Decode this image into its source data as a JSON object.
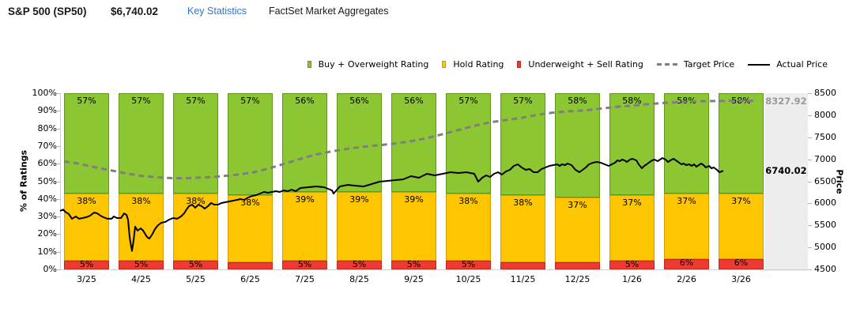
{
  "header": {
    "title": "S&P 500 (SP50)",
    "price": "$6,740.02",
    "key_statistics_label": "Key Statistics",
    "source_label": "FactSet Market Aggregates",
    "link_color": "#2878ce"
  },
  "legend": {
    "items": [
      {
        "label": "Buy + Overweight Rating",
        "swatch": "bar",
        "color": "#8cc632",
        "border": "#5f9718"
      },
      {
        "label": "Hold Rating",
        "swatch": "bar",
        "color": "#fdc600",
        "border": "#d89e00"
      },
      {
        "label": "Underweight + Sell Rating",
        "swatch": "bar",
        "color": "#ee3a30",
        "border": "#be2a1f"
      },
      {
        "label": "Target Price",
        "swatch": "dash",
        "color": "#7f7f7f"
      },
      {
        "label": "Actual Price",
        "swatch": "line",
        "color": "#000000"
      }
    ]
  },
  "chart_data": {
    "type": "combo-stacked-bar-and-lines",
    "categories": [
      "3/25",
      "4/25",
      "5/25",
      "6/25",
      "7/25",
      "8/25",
      "9/25",
      "10/25",
      "11/25",
      "12/25",
      "1/26",
      "2/26",
      "3/26"
    ],
    "bar_series": [
      {
        "name": "Buy + Overweight Rating",
        "fill": "#8cc632",
        "border": "#5f9718",
        "values": [
          57,
          57,
          57,
          57,
          56,
          56,
          56,
          57,
          57,
          58,
          58,
          58,
          58
        ],
        "labels": [
          "57%",
          "57%",
          "57%",
          "57%",
          "56%",
          "56%",
          "56%",
          "57%",
          "57%",
          "58%",
          "58%",
          "58%",
          "58%"
        ]
      },
      {
        "name": "Hold Rating",
        "fill": "#fdc600",
        "border": "#d89e00",
        "values": [
          38,
          38,
          38,
          38,
          39,
          39,
          39,
          38,
          38,
          37,
          37,
          37,
          37
        ],
        "labels": [
          "38%",
          "38%",
          "38%",
          "38%",
          "39%",
          "39%",
          "39%",
          "38%",
          "38%",
          "37%",
          "37%",
          "37%",
          "37%"
        ]
      },
      {
        "name": "Underweight + Sell Rating",
        "fill": "#ee3a30",
        "border": "#be2a1f",
        "values": [
          5,
          5,
          5,
          4,
          5,
          5,
          5,
          5,
          4,
          4,
          5,
          6,
          6
        ],
        "labels": [
          "5%",
          "5%",
          "5%",
          "",
          "5%",
          "5%",
          "5%",
          "5%",
          "",
          "",
          "5%",
          "6%",
          "6%"
        ]
      }
    ],
    "line_series": [
      {
        "name": "Target Price",
        "style": "dashed",
        "color": "#7f7f7f",
        "points": [
          [
            81,
            6950
          ],
          [
            100,
            6900
          ],
          [
            120,
            6820
          ],
          [
            140,
            6750
          ],
          [
            160,
            6680
          ],
          [
            180,
            6620
          ],
          [
            200,
            6590
          ],
          [
            220,
            6570
          ],
          [
            240,
            6575
          ],
          [
            260,
            6590
          ],
          [
            280,
            6615
          ],
          [
            300,
            6650
          ],
          [
            320,
            6700
          ],
          [
            340,
            6790
          ],
          [
            360,
            6900
          ],
          [
            380,
            7010
          ],
          [
            400,
            7110
          ],
          [
            420,
            7180
          ],
          [
            440,
            7240
          ],
          [
            460,
            7285
          ],
          [
            480,
            7320
          ],
          [
            500,
            7360
          ],
          [
            520,
            7410
          ],
          [
            540,
            7480
          ],
          [
            560,
            7570
          ],
          [
            580,
            7665
          ],
          [
            600,
            7760
          ],
          [
            620,
            7840
          ],
          [
            640,
            7890
          ],
          [
            660,
            7940
          ],
          [
            680,
            8010
          ],
          [
            700,
            8060
          ],
          [
            720,
            8090
          ],
          [
            740,
            8110
          ],
          [
            760,
            8150
          ],
          [
            780,
            8190
          ],
          [
            800,
            8220
          ],
          [
            820,
            8250
          ],
          [
            840,
            8280
          ],
          [
            860,
            8300
          ],
          [
            880,
            8315
          ],
          [
            900,
            8322
          ],
          [
            930,
            8326
          ],
          [
            958,
            8327.92
          ]
        ]
      },
      {
        "name": "Actual Price",
        "style": "solid",
        "color": "#000000",
        "points": [
          [
            76,
            5827
          ],
          [
            80,
            5858
          ],
          [
            83,
            5800
          ],
          [
            87,
            5757
          ],
          [
            91,
            5650
          ],
          [
            96,
            5702
          ],
          [
            100,
            5650
          ],
          [
            105,
            5668
          ],
          [
            110,
            5690
          ],
          [
            114,
            5720
          ],
          [
            119,
            5790
          ],
          [
            123,
            5773
          ],
          [
            127,
            5720
          ],
          [
            131,
            5684
          ],
          [
            136,
            5650
          ],
          [
            141,
            5650
          ],
          [
            144,
            5702
          ],
          [
            148,
            5666
          ],
          [
            153,
            5666
          ],
          [
            157,
            5770
          ],
          [
            160,
            5738
          ],
          [
            162,
            5630
          ],
          [
            164,
            5235
          ],
          [
            166,
            5010
          ],
          [
            167,
            4920
          ],
          [
            169,
            5160
          ],
          [
            171,
            5470
          ],
          [
            174,
            5380
          ],
          [
            178,
            5432
          ],
          [
            181,
            5380
          ],
          [
            186,
            5235
          ],
          [
            189,
            5200
          ],
          [
            193,
            5307
          ],
          [
            196,
            5415
          ],
          [
            200,
            5504
          ],
          [
            204,
            5558
          ],
          [
            209,
            5576
          ],
          [
            214,
            5630
          ],
          [
            219,
            5666
          ],
          [
            224,
            5650
          ],
          [
            229,
            5702
          ],
          [
            233,
            5773
          ],
          [
            236,
            5862
          ],
          [
            239,
            5935
          ],
          [
            243,
            5971
          ],
          [
            247,
            5900
          ],
          [
            251,
            5971
          ],
          [
            255,
            5935
          ],
          [
            259,
            5880
          ],
          [
            263,
            5935
          ],
          [
            267,
            6007
          ],
          [
            271,
            5971
          ],
          [
            276,
            5971
          ],
          [
            280,
            6007
          ],
          [
            285,
            6025
          ],
          [
            290,
            6043
          ],
          [
            295,
            6061
          ],
          [
            300,
            6079
          ],
          [
            304,
            6096
          ],
          [
            309,
            6079
          ],
          [
            314,
            6132
          ],
          [
            319,
            6168
          ],
          [
            324,
            6186
          ],
          [
            329,
            6222
          ],
          [
            334,
            6258
          ],
          [
            339,
            6240
          ],
          [
            344,
            6258
          ],
          [
            349,
            6276
          ],
          [
            354,
            6258
          ],
          [
            359,
            6294
          ],
          [
            364,
            6276
          ],
          [
            369,
            6312
          ],
          [
            374,
            6276
          ],
          [
            380,
            6348
          ],
          [
            390,
            6366
          ],
          [
            400,
            6384
          ],
          [
            410,
            6366
          ],
          [
            420,
            6294
          ],
          [
            422,
            6222
          ],
          [
            430,
            6384
          ],
          [
            440,
            6420
          ],
          [
            450,
            6400
          ],
          [
            460,
            6384
          ],
          [
            470,
            6437
          ],
          [
            480,
            6491
          ],
          [
            490,
            6509
          ],
          [
            500,
            6527
          ],
          [
            510,
            6545
          ],
          [
            520,
            6616
          ],
          [
            530,
            6581
          ],
          [
            540,
            6670
          ],
          [
            550,
            6634
          ],
          [
            560,
            6670
          ],
          [
            570,
            6706
          ],
          [
            580,
            6688
          ],
          [
            590,
            6706
          ],
          [
            600,
            6670
          ],
          [
            605,
            6491
          ],
          [
            610,
            6581
          ],
          [
            615,
            6634
          ],
          [
            620,
            6598
          ],
          [
            625,
            6670
          ],
          [
            630,
            6706
          ],
          [
            635,
            6652
          ],
          [
            640,
            6724
          ],
          [
            645,
            6760
          ],
          [
            650,
            6850
          ],
          [
            655,
            6886
          ],
          [
            660,
            6814
          ],
          [
            665,
            6760
          ],
          [
            670,
            6778
          ],
          [
            675,
            6706
          ],
          [
            680,
            6706
          ],
          [
            685,
            6778
          ],
          [
            690,
            6814
          ],
          [
            695,
            6850
          ],
          [
            700,
            6868
          ],
          [
            705,
            6886
          ],
          [
            708,
            6850
          ],
          [
            711,
            6886
          ],
          [
            715,
            6868
          ],
          [
            718,
            6904
          ],
          [
            723,
            6868
          ],
          [
            728,
            6760
          ],
          [
            733,
            6706
          ],
          [
            737,
            6760
          ],
          [
            741,
            6814
          ],
          [
            745,
            6886
          ],
          [
            750,
            6922
          ],
          [
            755,
            6940
          ],
          [
            760,
            6922
          ],
          [
            765,
            6886
          ],
          [
            770,
            6850
          ],
          [
            774,
            6886
          ],
          [
            778,
            6922
          ],
          [
            781,
            6975
          ],
          [
            784,
            6958
          ],
          [
            787,
            6993
          ],
          [
            790,
            6975
          ],
          [
            793,
            6940
          ],
          [
            797,
            6993
          ],
          [
            800,
            7011
          ],
          [
            805,
            6975
          ],
          [
            808,
            6886
          ],
          [
            812,
            6796
          ],
          [
            815,
            6850
          ],
          [
            818,
            6886
          ],
          [
            822,
            6940
          ],
          [
            825,
            6975
          ],
          [
            828,
            6993
          ],
          [
            832,
            6958
          ],
          [
            835,
            6993
          ],
          [
            838,
            7029
          ],
          [
            842,
            6993
          ],
          [
            845,
            6940
          ],
          [
            848,
            6975
          ],
          [
            852,
            7011
          ],
          [
            855,
            6975
          ],
          [
            858,
            6940
          ],
          [
            862,
            6886
          ],
          [
            865,
            6904
          ],
          [
            868,
            6868
          ],
          [
            872,
            6886
          ],
          [
            875,
            6850
          ],
          [
            878,
            6886
          ],
          [
            881,
            6832
          ],
          [
            884,
            6868
          ],
          [
            887,
            6904
          ],
          [
            890,
            6868
          ],
          [
            893,
            6814
          ],
          [
            897,
            6850
          ],
          [
            900,
            6796
          ],
          [
            903,
            6814
          ],
          [
            907,
            6760
          ],
          [
            910,
            6706
          ],
          [
            913,
            6724
          ],
          [
            915,
            6740.02
          ]
        ]
      }
    ],
    "left_axis": {
      "title": "% of Ratings",
      "min": 0,
      "max": 100,
      "ticks": [
        "0%",
        "10%",
        "20%",
        "30%",
        "40%",
        "50%",
        "60%",
        "70%",
        "80%",
        "90%",
        "100%"
      ]
    },
    "right_axis": {
      "title": "Price",
      "min": 4500,
      "max": 8500,
      "ticks": [
        4500,
        5000,
        5500,
        6000,
        6500,
        7000,
        7500,
        8000,
        8500
      ]
    },
    "value_labels": {
      "target": "8327.92",
      "target_color": "#9a9a9a",
      "actual": "6740.02",
      "actual_color": "#000000"
    },
    "legend_position": "top-right",
    "grid": "off"
  }
}
